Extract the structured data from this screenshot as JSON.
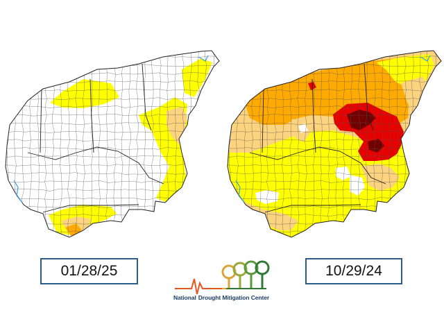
{
  "maps": [
    {
      "date": "01/28/25",
      "colors": {
        "none": "#ffffff",
        "d0": "#ffff00",
        "d1": "#fcd37f",
        "d2": "#ffaa00",
        "d3": "#e60000",
        "d4": "#730000"
      }
    },
    {
      "date": "10/29/24",
      "colors": {
        "none": "#ffffff",
        "d0": "#ffff00",
        "d1": "#fcd37f",
        "d2": "#ffaa00",
        "d3": "#e60000",
        "d4": "#730000"
      }
    }
  ],
  "logo": {
    "name_part1": "National",
    "name_part2": "Drought Mitigation Center"
  }
}
